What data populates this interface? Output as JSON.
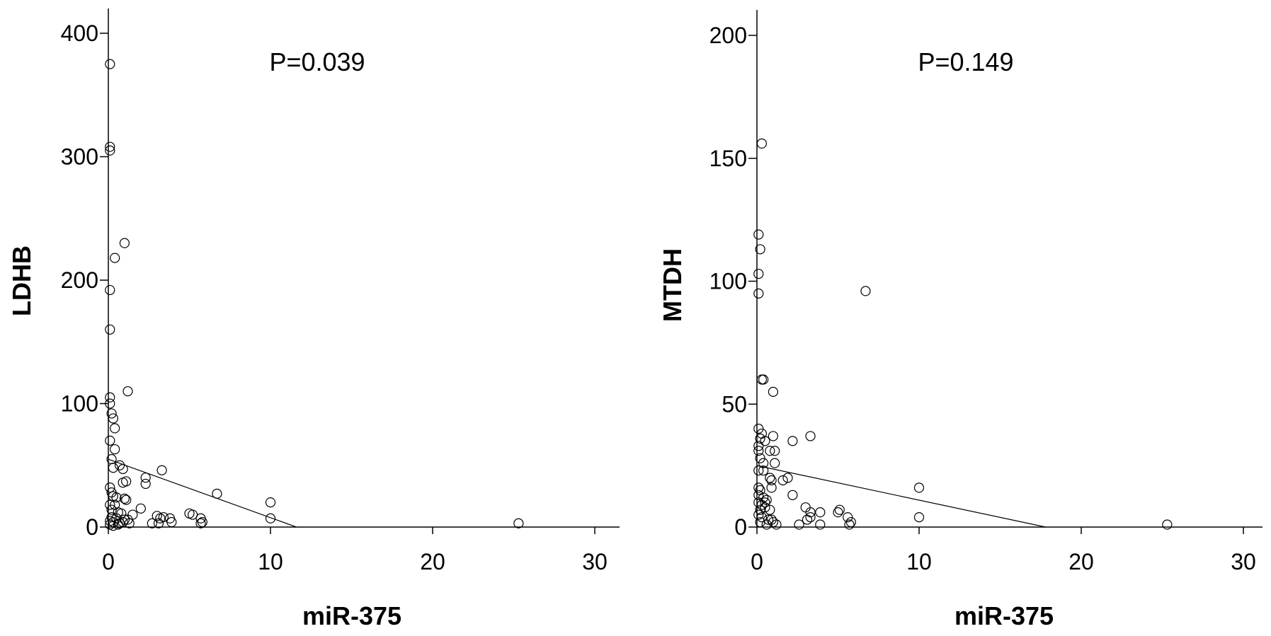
{
  "chart_data": [
    {
      "type": "scatter",
      "title": "",
      "xlabel": "miR-375",
      "ylabel": "LDHB",
      "annotation": "P=0.039",
      "xlim": [
        0,
        32
      ],
      "ylim": [
        0,
        420
      ],
      "xticks": [
        0,
        10,
        20,
        30
      ],
      "yticks": [
        0,
        100,
        200,
        300,
        400
      ],
      "grid": false,
      "fit_line": {
        "x": [
          0,
          11.6
        ],
        "y": [
          55,
          0
        ]
      },
      "points": [
        [
          0.1,
          375
        ],
        [
          0.1,
          308
        ],
        [
          0.1,
          305
        ],
        [
          1.0,
          230
        ],
        [
          0.4,
          218
        ],
        [
          0.1,
          192
        ],
        [
          0.1,
          160
        ],
        [
          1.2,
          110
        ],
        [
          0.1,
          105
        ],
        [
          0.1,
          100
        ],
        [
          0.2,
          92
        ],
        [
          0.3,
          88
        ],
        [
          0.4,
          80
        ],
        [
          0.1,
          70
        ],
        [
          0.4,
          63
        ],
        [
          0.2,
          55
        ],
        [
          0.7,
          50
        ],
        [
          0.9,
          47
        ],
        [
          0.3,
          48
        ],
        [
          3.3,
          46
        ],
        [
          2.3,
          40
        ],
        [
          2.3,
          35
        ],
        [
          1.1,
          37
        ],
        [
          0.9,
          36
        ],
        [
          0.1,
          32
        ],
        [
          0.2,
          28
        ],
        [
          0.3,
          25
        ],
        [
          6.7,
          27
        ],
        [
          0.5,
          24
        ],
        [
          1.0,
          23
        ],
        [
          1.1,
          22
        ],
        [
          10.0,
          20
        ],
        [
          0.1,
          18
        ],
        [
          0.4,
          18
        ],
        [
          2.0,
          15
        ],
        [
          0.2,
          14
        ],
        [
          0.6,
          12
        ],
        [
          0.8,
          11
        ],
        [
          5.0,
          11
        ],
        [
          5.2,
          10
        ],
        [
          1.5,
          10
        ],
        [
          3.0,
          9
        ],
        [
          3.2,
          7
        ],
        [
          3.4,
          8
        ],
        [
          3.8,
          7
        ],
        [
          5.7,
          7
        ],
        [
          10.0,
          7
        ],
        [
          0.2,
          8
        ],
        [
          0.5,
          7
        ],
        [
          1.0,
          6
        ],
        [
          1.2,
          6
        ],
        [
          0.1,
          5
        ],
        [
          0.3,
          4
        ],
        [
          0.7,
          3
        ],
        [
          0.9,
          4
        ],
        [
          1.3,
          3
        ],
        [
          2.7,
          3
        ],
        [
          3.1,
          3
        ],
        [
          3.9,
          4
        ],
        [
          5.7,
          3
        ],
        [
          5.8,
          4
        ],
        [
          0.1,
          2
        ],
        [
          0.3,
          1
        ],
        [
          0.6,
          2
        ],
        [
          25.3,
          3
        ]
      ]
    },
    {
      "type": "scatter",
      "title": "",
      "xlabel": "miR-375",
      "ylabel": "MTDH",
      "annotation": "P=0.149",
      "xlim": [
        0,
        32
      ],
      "ylim": [
        0,
        210
      ],
      "xticks": [
        0,
        10,
        20,
        30
      ],
      "yticks": [
        0,
        50,
        100,
        150,
        200
      ],
      "grid": false,
      "fit_line": {
        "x": [
          0,
          17.8
        ],
        "y": [
          25,
          0
        ]
      },
      "points": [
        [
          0.3,
          156
        ],
        [
          0.1,
          119
        ],
        [
          0.2,
          113
        ],
        [
          0.1,
          103
        ],
        [
          0.1,
          95
        ],
        [
          6.7,
          96
        ],
        [
          0.3,
          60
        ],
        [
          0.4,
          60
        ],
        [
          1.0,
          55
        ],
        [
          0.1,
          40
        ],
        [
          0.3,
          38
        ],
        [
          0.2,
          36
        ],
        [
          1.0,
          37
        ],
        [
          3.3,
          37
        ],
        [
          0.5,
          35
        ],
        [
          2.2,
          35
        ],
        [
          0.1,
          33
        ],
        [
          0.1,
          31
        ],
        [
          0.8,
          31
        ],
        [
          1.1,
          31
        ],
        [
          0.2,
          28
        ],
        [
          0.4,
          26
        ],
        [
          1.1,
          26
        ],
        [
          0.1,
          23
        ],
        [
          0.4,
          23
        ],
        [
          0.8,
          20
        ],
        [
          0.9,
          19
        ],
        [
          1.6,
          19
        ],
        [
          1.9,
          20
        ],
        [
          0.1,
          16
        ],
        [
          0.2,
          15
        ],
        [
          0.9,
          16
        ],
        [
          10.0,
          16
        ],
        [
          0.1,
          13
        ],
        [
          0.4,
          12
        ],
        [
          2.2,
          13
        ],
        [
          0.1,
          10
        ],
        [
          0.3,
          9
        ],
        [
          0.5,
          10
        ],
        [
          0.6,
          11
        ],
        [
          0.2,
          7
        ],
        [
          0.5,
          8
        ],
        [
          0.8,
          7
        ],
        [
          3.0,
          8
        ],
        [
          3.3,
          6
        ],
        [
          3.9,
          6
        ],
        [
          5.0,
          6
        ],
        [
          5.1,
          7
        ],
        [
          0.1,
          5
        ],
        [
          0.3,
          4
        ],
        [
          0.7,
          3
        ],
        [
          0.9,
          3
        ],
        [
          1.0,
          2
        ],
        [
          3.1,
          3
        ],
        [
          3.3,
          4
        ],
        [
          5.6,
          4
        ],
        [
          10.0,
          4
        ],
        [
          0.2,
          2
        ],
        [
          0.6,
          1
        ],
        [
          1.2,
          1
        ],
        [
          2.6,
          1
        ],
        [
          3.9,
          1
        ],
        [
          5.7,
          1
        ],
        [
          5.8,
          2
        ],
        [
          25.3,
          1
        ]
      ]
    }
  ]
}
